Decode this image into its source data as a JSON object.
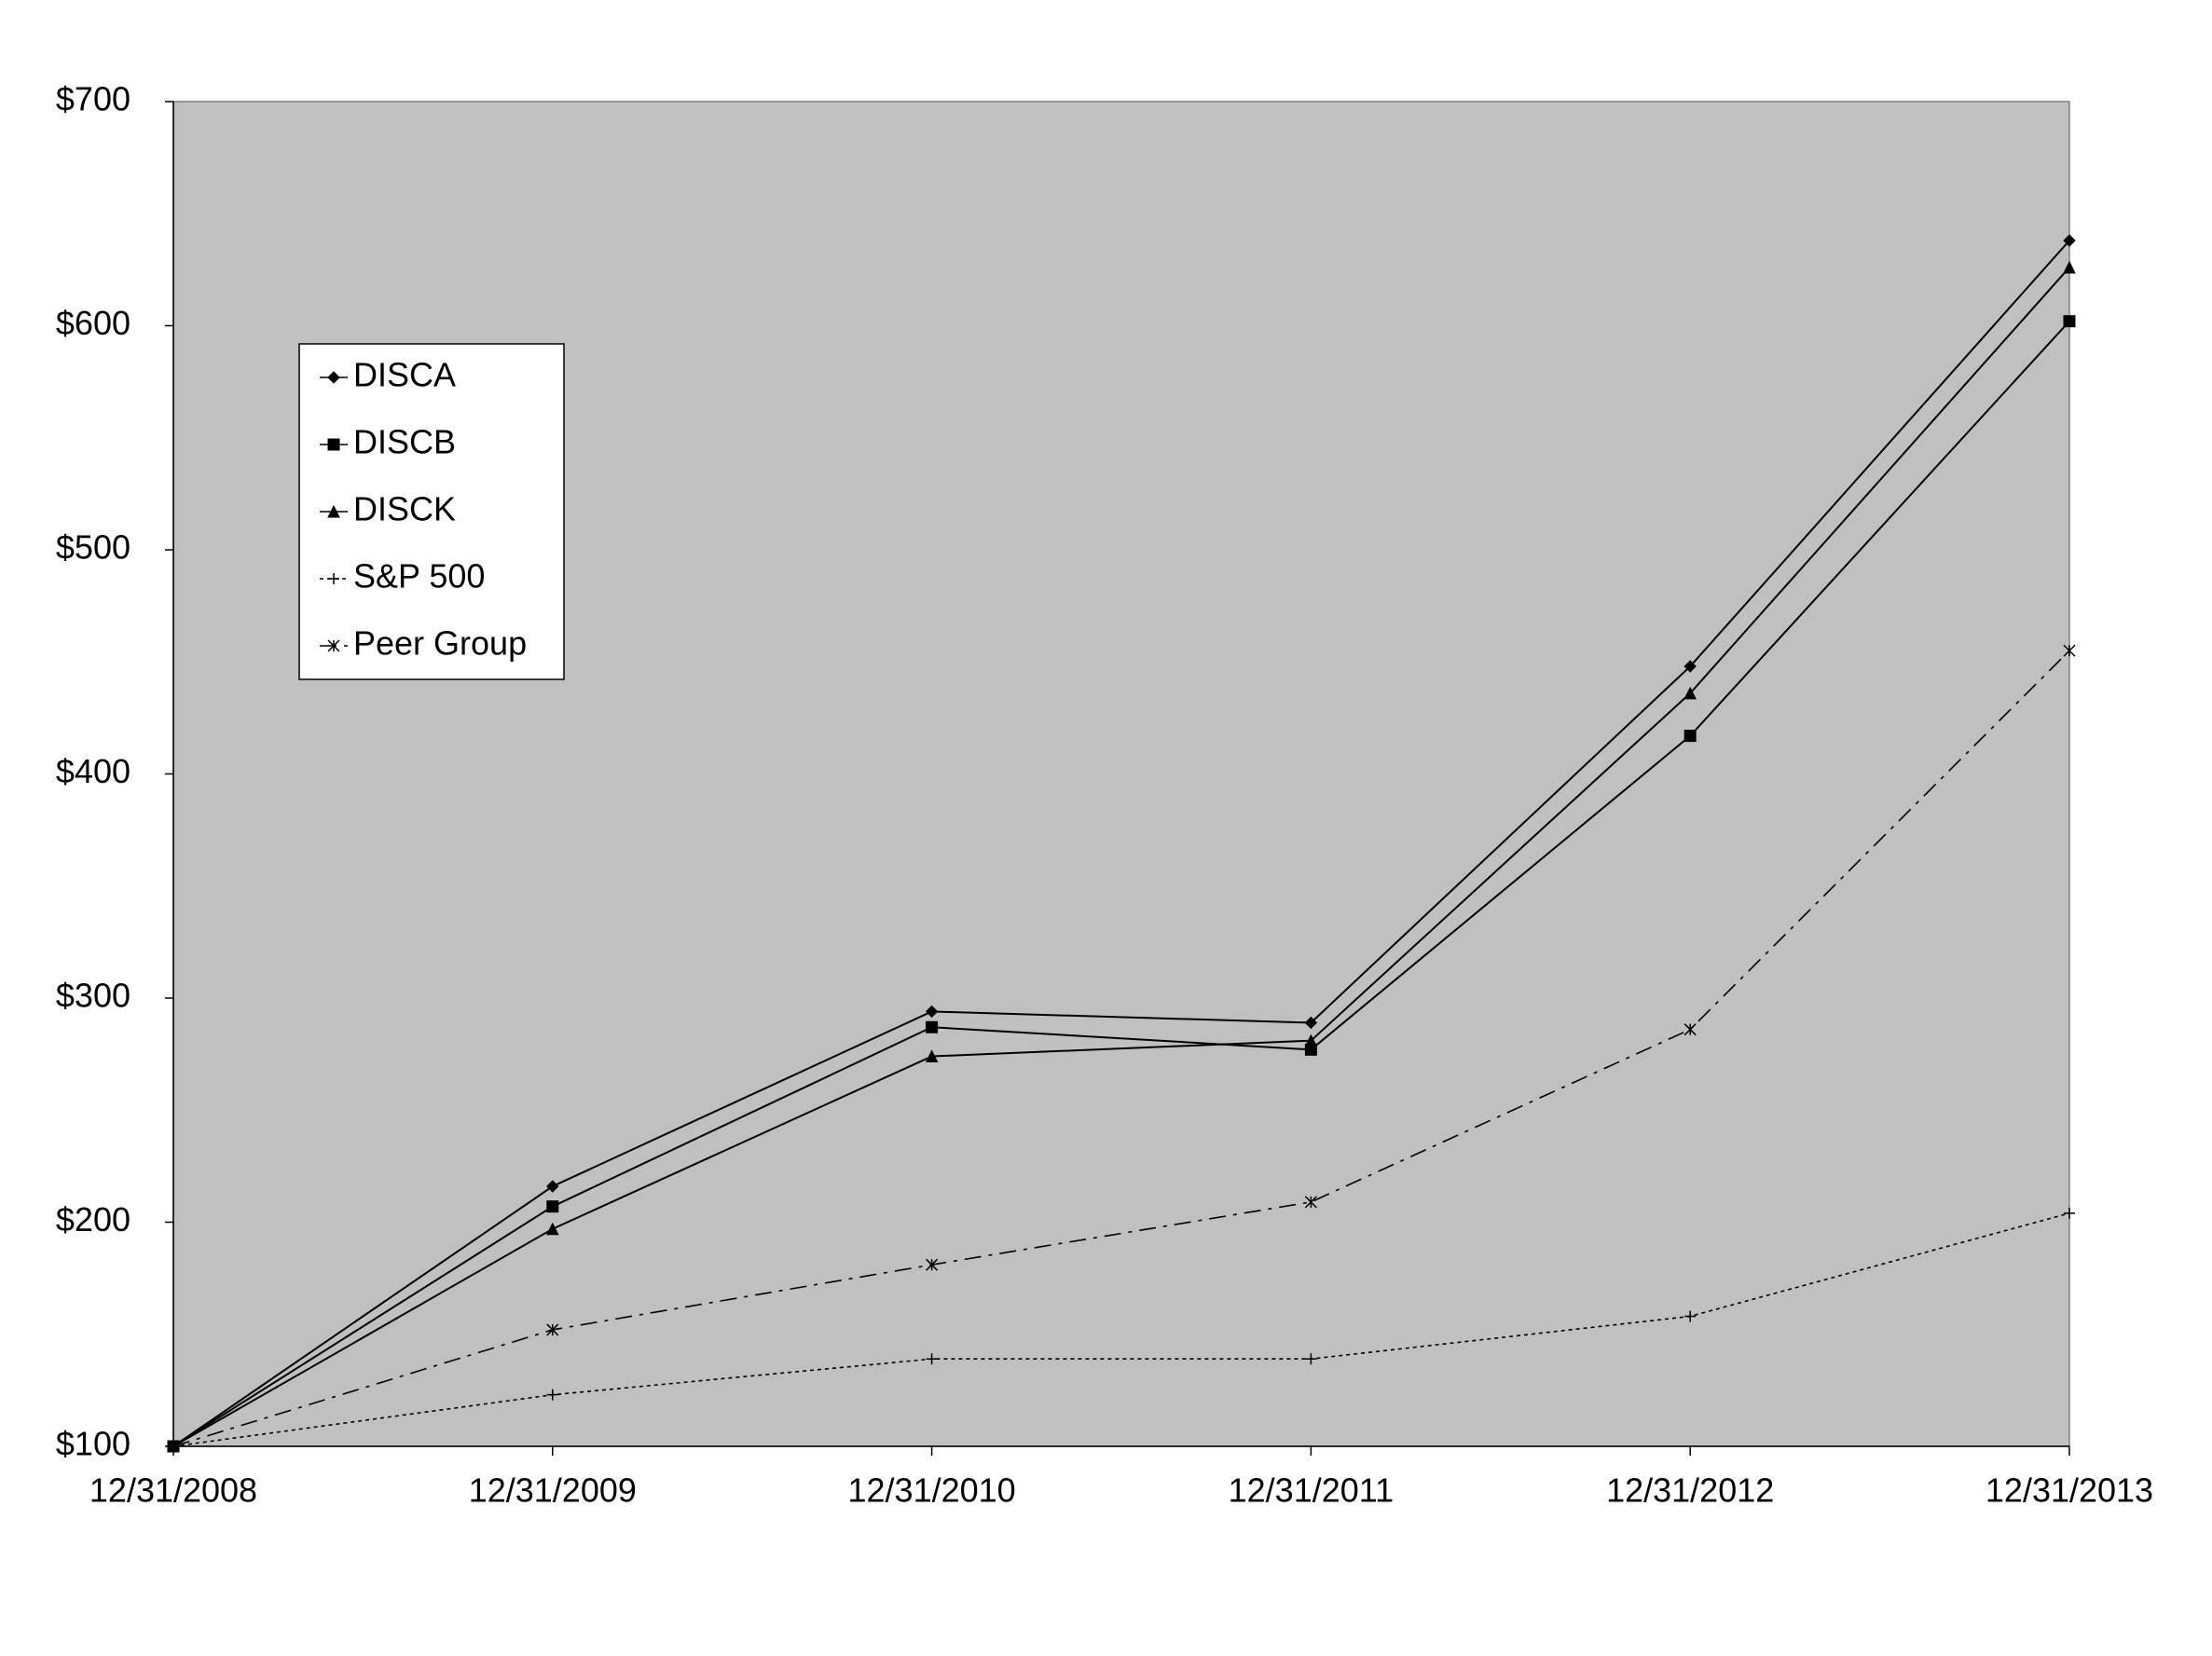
{
  "chart_data": {
    "type": "line",
    "categories": [
      "12/31/2008",
      "12/31/2009",
      "12/31/2010",
      "12/31/2011",
      "12/31/2012",
      "12/31/2013"
    ],
    "series": [
      {
        "name": "DISCA",
        "color": "#000000",
        "marker": "diamond",
        "style": "solid",
        "values": [
          100,
          216,
          294,
          289,
          448,
          638
        ]
      },
      {
        "name": "DISCB",
        "color": "#000000",
        "marker": "square",
        "style": "solid",
        "values": [
          100,
          207,
          287,
          277,
          417,
          602
        ]
      },
      {
        "name": "DISCK",
        "color": "#000000",
        "marker": "triangle",
        "style": "solid",
        "values": [
          100,
          197,
          274,
          281,
          436,
          626
        ]
      },
      {
        "name": "S&P 500",
        "color": "#000000",
        "marker": "plus",
        "style": "dotted",
        "values": [
          100,
          123,
          139,
          139,
          158,
          204
        ]
      },
      {
        "name": "Peer Group",
        "color": "#000000",
        "marker": "asterisk",
        "style": "dashdot",
        "values": [
          100,
          152,
          181,
          209,
          286,
          455
        ]
      }
    ],
    "ylim": [
      100,
      700
    ],
    "yticks": [
      {
        "value": 100,
        "label": "$100"
      },
      {
        "value": 200,
        "label": "$200"
      },
      {
        "value": 300,
        "label": "$300"
      },
      {
        "value": 400,
        "label": "$400"
      },
      {
        "value": 500,
        "label": "$500"
      },
      {
        "value": 600,
        "label": "$600"
      },
      {
        "value": 700,
        "label": "$700"
      }
    ],
    "legend": "upper left"
  }
}
